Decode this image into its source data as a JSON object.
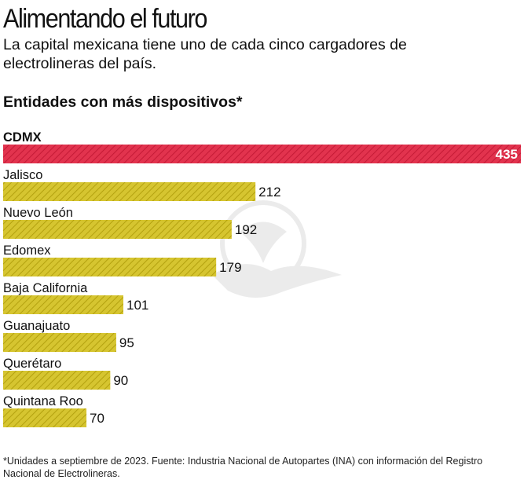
{
  "title": "Alimentando el futuro",
  "subtitle": "La capital mexicana tiene uno  de cada cinco cargadores de electrolineras del país.",
  "section_title": "Entidades con más dispositivos*",
  "chart_data": {
    "type": "bar",
    "orientation": "horizontal",
    "title": "Entidades con más dispositivos*",
    "categories": [
      "CDMX",
      "Jalisco",
      "Nuevo León",
      "Edomex",
      "Baja California",
      "Guanajuato",
      "Querétaro",
      "Quintana Roo"
    ],
    "values": [
      435,
      212,
      192,
      179,
      101,
      95,
      90,
      70
    ],
    "highlight": "CDMX",
    "xlim": [
      0,
      435
    ],
    "grid": false,
    "xlabel": "",
    "ylabel": ""
  },
  "colors": {
    "highlight_bar": "#e2334e",
    "highlight_stripe": "#c41a36",
    "bar": "#d6c530",
    "bar_stripe": "#b3a10f"
  },
  "footnote": "*Unidades a septiembre de 2023. Fuente: Industria Nacional de Autopartes (INA) con información del Registro Nacional de Electrolineras."
}
